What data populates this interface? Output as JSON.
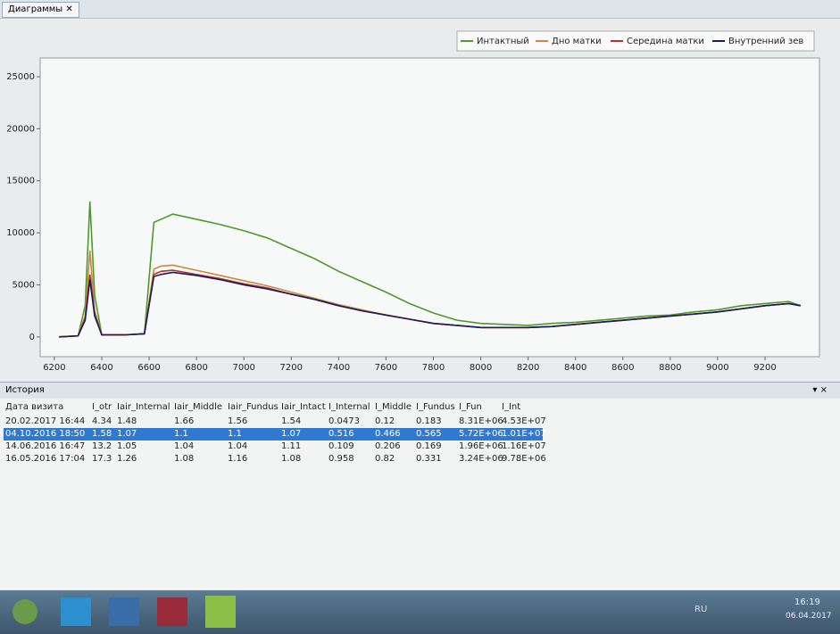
{
  "tab": {
    "title": "Диаграммы"
  },
  "chart_data": {
    "type": "line",
    "x": [
      6220,
      6300,
      6330,
      6350,
      6370,
      6400,
      6500,
      6580,
      6620,
      6650,
      6700,
      6800,
      6900,
      7000,
      7100,
      7200,
      7300,
      7400,
      7500,
      7600,
      7700,
      7800,
      7900,
      8000,
      8100,
      8200,
      8300,
      8400,
      8500,
      8600,
      8700,
      8800,
      8900,
      9000,
      9100,
      9200,
      9300,
      9350
    ],
    "series": [
      {
        "name": "Интактный",
        "color": "#4f9a2c",
        "values": [
          0,
          100,
          3000,
          13000,
          4000,
          200,
          200,
          300,
          11000,
          11300,
          11800,
          11300,
          10800,
          10200,
          9500,
          8500,
          7500,
          6300,
          5300,
          4300,
          3200,
          2300,
          1600,
          1300,
          1200,
          1100,
          1300,
          1400,
          1600,
          1800,
          2000,
          2100,
          2400,
          2600,
          3000,
          3200,
          3400,
          3000
        ]
      },
      {
        "name": "Дно матки",
        "color": "#c98a3c",
        "values": [
          0,
          100,
          2000,
          8300,
          2500,
          200,
          200,
          300,
          6500,
          6800,
          6900,
          6400,
          5900,
          5400,
          4900,
          4300,
          3700,
          3100,
          2600,
          2100,
          1700,
          1300,
          1100,
          900,
          900,
          900,
          1000,
          1200,
          1400,
          1600,
          1800,
          2000,
          2200,
          2400,
          2700,
          3000,
          3200,
          3000
        ]
      },
      {
        "name": "Середина матки",
        "color": "#b03434",
        "values": [
          0,
          100,
          1800,
          6000,
          2200,
          200,
          200,
          300,
          6000,
          6300,
          6400,
          6000,
          5600,
          5100,
          4700,
          4100,
          3600,
          3000,
          2500,
          2100,
          1700,
          1300,
          1100,
          900,
          900,
          900,
          1000,
          1200,
          1400,
          1600,
          1800,
          2000,
          2200,
          2400,
          2700,
          3000,
          3200,
          3000
        ]
      },
      {
        "name": "Внутренний зев",
        "color": "#1c1c5c",
        "values": [
          0,
          100,
          1600,
          5500,
          2000,
          200,
          200,
          300,
          5800,
          6000,
          6200,
          5900,
          5500,
          5000,
          4600,
          4100,
          3600,
          3000,
          2500,
          2100,
          1700,
          1300,
          1100,
          900,
          900,
          900,
          1000,
          1200,
          1400,
          1600,
          1800,
          2000,
          2200,
          2400,
          2700,
          3000,
          3200,
          3000
        ]
      }
    ],
    "xlim": [
      6140,
      9430
    ],
    "ylim": [
      -1900,
      26800
    ],
    "xticks": [
      6200,
      6400,
      6600,
      6800,
      7000,
      7200,
      7400,
      7600,
      7800,
      8000,
      8200,
      8400,
      8600,
      8800,
      9000,
      9200
    ],
    "yticks": [
      0,
      5000,
      10000,
      15000,
      20000,
      25000
    ],
    "legend": "top-right"
  },
  "history": {
    "title": "История",
    "columns": [
      "Дата визита",
      "I_otr",
      "Iair_Internal",
      "Iair_Middle",
      "Iair_Fundus",
      "Iair_Intact",
      "I_Internal",
      "I_Middle",
      "I_Fundus",
      "I_Fun",
      "I_Int"
    ],
    "rows": [
      [
        "20.02.2017 16:44",
        "4.34",
        "1.48",
        "1.66",
        "1.56",
        "1.54",
        "0.0473",
        "0.12",
        "0.183",
        "8.31E+06",
        "4.53E+07"
      ],
      [
        "04.10.2016 18:50",
        "1.58",
        "1.07",
        "1.1",
        "1.1",
        "1.07",
        "0.516",
        "0.466",
        "0.565",
        "5.72E+06",
        "1.01E+07"
      ],
      [
        "14.06.2016 16:47",
        "13.2",
        "1.05",
        "1.04",
        "1.04",
        "1.11",
        "0.109",
        "0.206",
        "0.169",
        "1.96E+06",
        "1.16E+07"
      ],
      [
        "16.05.2016 17:04",
        "17.3",
        "1.26",
        "1.08",
        "1.16",
        "1.08",
        "0.958",
        "0.82",
        "0.331",
        "3.24E+06",
        "9.78E+06"
      ]
    ],
    "selected_row": 1
  },
  "taskbar": {
    "language": "RU",
    "time": "16:19",
    "date": "06.04.2017"
  }
}
